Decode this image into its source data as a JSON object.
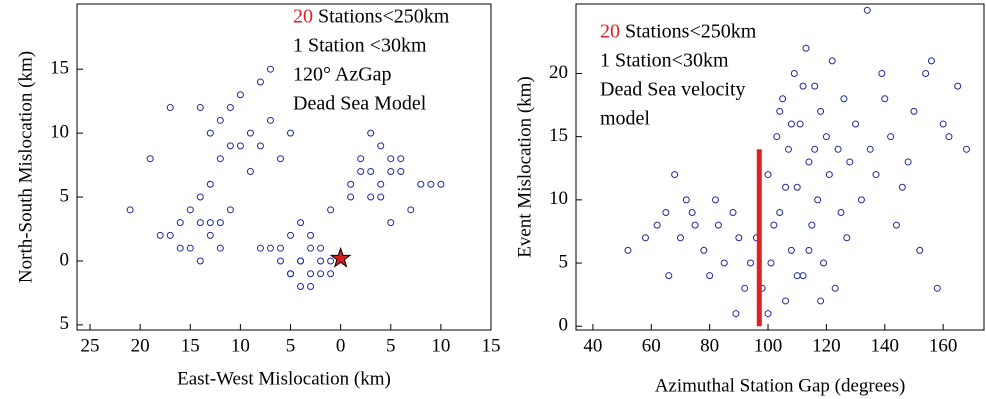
{
  "chart_data": [
    {
      "type": "scatter",
      "xlabel": "East-West Mislocation (km)",
      "ylabel": "North-South Mislocation (km)",
      "highlight": "20",
      "highlight_color": "#e0201f",
      "annotation": [
        "Stations<250km",
        "1  Station  <30km",
        "120° AzGap",
        "Dead Sea Model"
      ],
      "color": "#1f2a9a",
      "xlim": [
        -26.3,
        15
      ],
      "ylim": [
        -5.4,
        20.1
      ],
      "xticks": [
        {
          "value": -25,
          "label": "25"
        },
        {
          "value": -20,
          "label": "20"
        },
        {
          "value": -15,
          "label": "15"
        },
        {
          "value": -10,
          "label": "10"
        },
        {
          "value": -5,
          "label": "5"
        },
        0,
        5,
        10,
        15
      ],
      "yticks": [
        {
          "value": -5,
          "label": "5"
        },
        0,
        5,
        10,
        15
      ],
      "x": [
        -14,
        -13,
        -15,
        -12,
        -16,
        -14,
        -13,
        -17,
        -11,
        -15,
        -14,
        -18,
        -12,
        -13,
        -16,
        -4,
        -3,
        -5,
        -2,
        -6,
        -4,
        -3,
        -5,
        -1,
        -7,
        -4,
        -2,
        -3,
        -6,
        -5,
        -8,
        -1,
        -4,
        -3,
        -2,
        2,
        4,
        5,
        3,
        6,
        1,
        7,
        4,
        3,
        8,
        2,
        5,
        4,
        6,
        1,
        9,
        3,
        5,
        -10,
        -9,
        -12,
        -11,
        -8,
        -7,
        -13,
        -10,
        -9,
        -14,
        -6,
        -11,
        -8,
        -5,
        -12,
        -19,
        -17,
        -7,
        -21,
        -1,
        10
      ],
      "values": [
        3,
        2,
        4,
        1,
        3,
        5,
        3,
        2,
        4,
        1,
        0,
        2,
        3,
        6,
        1,
        0,
        1,
        -1,
        0,
        1,
        -2,
        -1,
        2,
        0,
        1,
        0,
        -1,
        2,
        0,
        -1,
        1,
        -1,
        3,
        -2,
        1,
        7,
        6,
        8,
        5,
        7,
        6,
        4,
        9,
        7,
        6,
        8,
        3,
        5,
        8,
        5,
        6,
        10,
        7,
        9,
        10,
        8,
        12,
        9,
        11,
        10,
        13,
        7,
        12,
        8,
        9,
        14,
        10,
        11,
        8,
        12,
        15,
        4,
        4,
        6
      ],
      "star": {
        "x": 0,
        "y": 0.2,
        "color": "#d42020"
      }
    },
    {
      "type": "scatter",
      "xlabel": "Azimuthal Station Gap (degrees)",
      "ylabel": "Event Mislocation (km)",
      "highlight": "20",
      "highlight_color": "#e0201f",
      "annotation": [
        "Stations<250km",
        "1   Station<30km",
        "Dead Sea velocity",
        "model"
      ],
      "color": "#1f2a9a",
      "xlim": [
        34.2,
        174
      ],
      "ylim": [
        -0.3,
        25.5
      ],
      "xticks": [
        40,
        60,
        80,
        100,
        120,
        140,
        160
      ],
      "yticks": [
        0,
        5,
        10,
        15,
        20
      ],
      "x": [
        52,
        58,
        62,
        65,
        68,
        70,
        72,
        75,
        78,
        80,
        83,
        85,
        88,
        90,
        92,
        94,
        66,
        74,
        82,
        89,
        96,
        98,
        100,
        101,
        103,
        104,
        105,
        106,
        107,
        108,
        109,
        110,
        111,
        112,
        113,
        114,
        115,
        116,
        117,
        118,
        119,
        120,
        121,
        122,
        123,
        124,
        125,
        126,
        127,
        128,
        100,
        102,
        104,
        106,
        108,
        110,
        112,
        114,
        116,
        118,
        130,
        132,
        134,
        135,
        137,
        139,
        140,
        142,
        144,
        146,
        148,
        150,
        152,
        154,
        156,
        158,
        160,
        162,
        165,
        168
      ],
      "values": [
        6,
        7,
        8,
        9,
        12,
        7,
        10,
        8,
        6,
        4,
        8,
        5,
        9,
        7,
        3,
        5,
        4,
        9,
        10,
        1,
        7,
        3,
        12,
        5,
        15,
        9,
        18,
        2,
        14,
        6,
        20,
        11,
        16,
        4,
        22,
        13,
        8,
        19,
        10,
        17,
        5,
        15,
        12,
        21,
        3,
        14,
        9,
        18,
        7,
        13,
        1,
        8,
        17,
        11,
        16,
        4,
        19,
        6,
        14,
        2,
        16,
        10,
        25,
        14,
        12,
        20,
        18,
        15,
        8,
        11,
        13,
        17,
        6,
        20,
        21,
        3,
        16,
        15,
        19,
        14
      ],
      "threshold": {
        "x": 97,
        "y": [
          0,
          14
        ],
        "color": "#e02020"
      }
    }
  ]
}
